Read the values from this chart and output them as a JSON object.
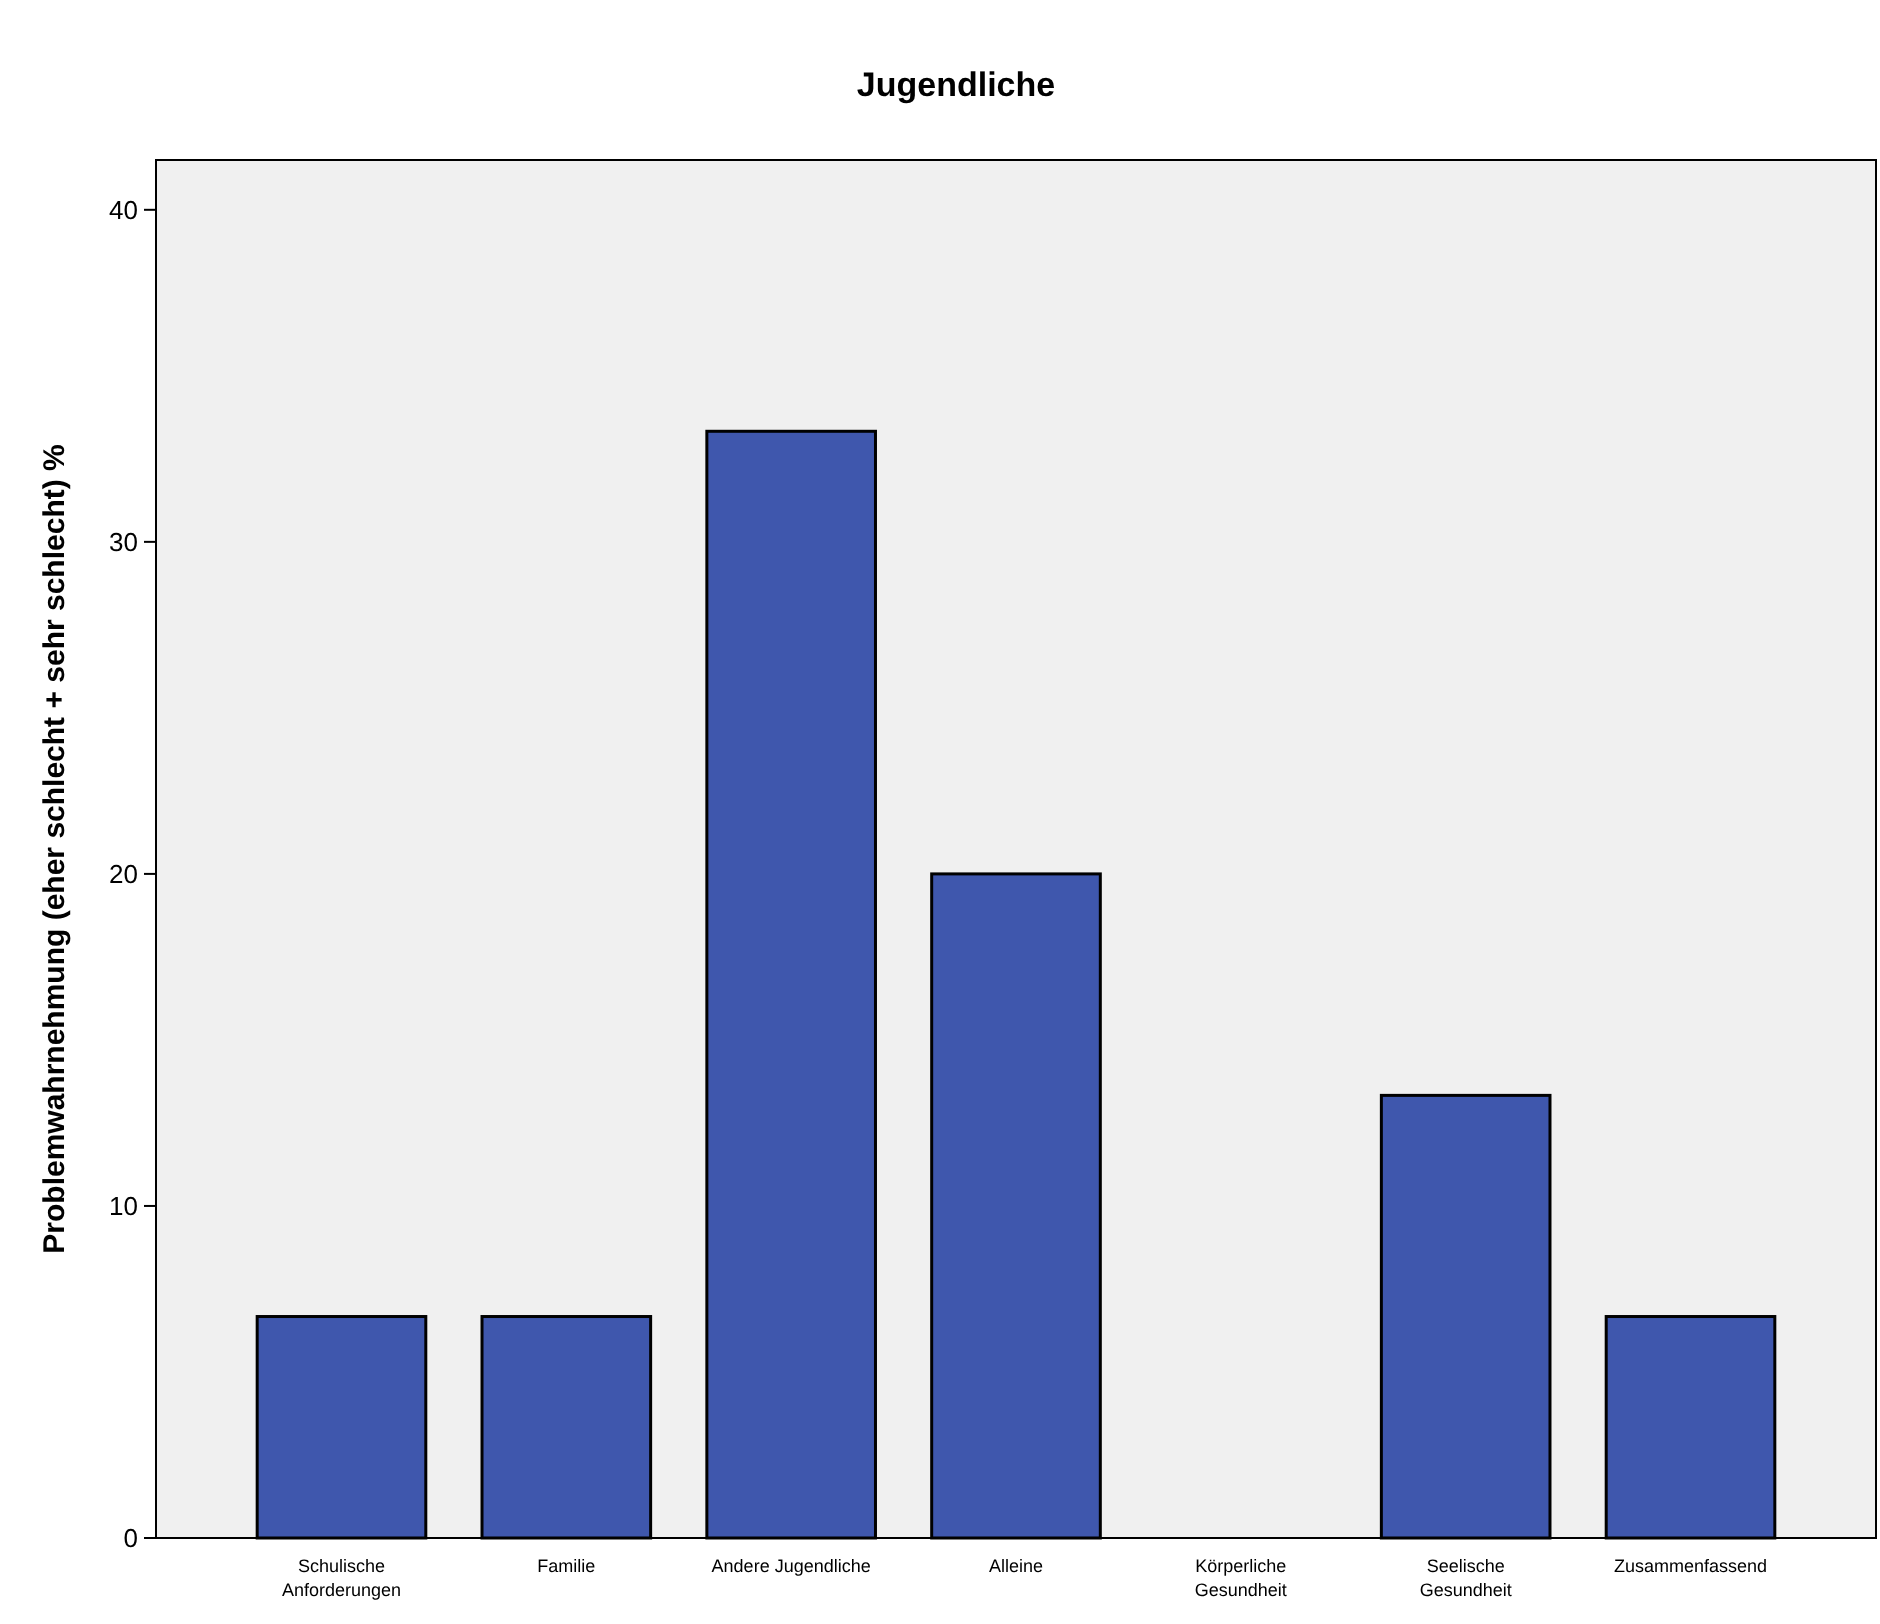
{
  "chart_data": {
    "type": "bar",
    "title": "Jugendliche",
    "ylabel": "Problemwahrnehmung (eher schlecht + sehr schlecht) %",
    "categories": [
      "Schulische Anforderungen",
      "Familie",
      "Andere Jugendliche",
      "Alleine",
      "Körperliche Gesundheit",
      "Seelische Gesundheit",
      "Zusammenfassend"
    ],
    "values": [
      6.67,
      6.67,
      33.33,
      20,
      0,
      13.33,
      6.67
    ],
    "color": "#3f57ad",
    "ylim": [
      0,
      41.5
    ],
    "yticks": [
      0,
      10,
      20,
      30,
      40
    ],
    "grid": false
  }
}
